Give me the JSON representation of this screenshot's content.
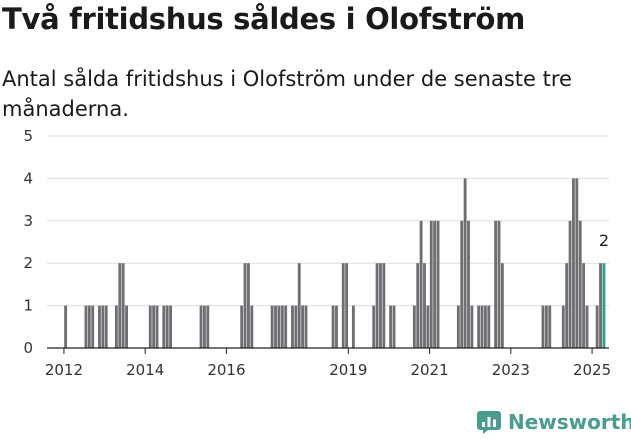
{
  "header": {
    "title": "Två fritidshus såldes i Olofström",
    "subtitle": "Antal sålda fritidshus i Olofström under de senaste tre månaderna."
  },
  "brand": {
    "name": "Newsworthy",
    "icon": "newsworthy-logo-icon",
    "color": "#4a9c8f"
  },
  "colors": {
    "bar": "#6e6e73",
    "highlight": "#2a9d8f",
    "grid": "#dddddd",
    "axis": "#222222"
  },
  "chart_data": {
    "type": "bar",
    "title": "Två fritidshus såldes i Olofström",
    "subtitle": "Antal sålda fritidshus i Olofström under de senaste tre månaderna.",
    "xlabel": "",
    "ylabel": "",
    "ylim": [
      0,
      5
    ],
    "yticks": [
      0,
      1,
      2,
      3,
      4,
      5
    ],
    "x_range": [
      "2011-08",
      "2025-05"
    ],
    "xticks": [
      "2012",
      "2014",
      "2016",
      "2019",
      "2021",
      "2023",
      "2025"
    ],
    "grid": true,
    "legend": "none",
    "callout": {
      "month": "2025-04",
      "label": "2"
    },
    "series": [
      {
        "values": [
          [
            "2012-01",
            1
          ],
          [
            "2012-07",
            1
          ],
          [
            "2012-08",
            1
          ],
          [
            "2012-09",
            1
          ],
          [
            "2012-11",
            1
          ],
          [
            "2012-12",
            1
          ],
          [
            "2013-01",
            1
          ],
          [
            "2013-04",
            1
          ],
          [
            "2013-05",
            2
          ],
          [
            "2013-06",
            2
          ],
          [
            "2013-07",
            1
          ],
          [
            "2014-02",
            1
          ],
          [
            "2014-03",
            1
          ],
          [
            "2014-04",
            1
          ],
          [
            "2014-06",
            1
          ],
          [
            "2014-07",
            1
          ],
          [
            "2014-08",
            1
          ],
          [
            "2015-05",
            1
          ],
          [
            "2015-06",
            1
          ],
          [
            "2015-07",
            1
          ],
          [
            "2016-05",
            1
          ],
          [
            "2016-06",
            2
          ],
          [
            "2016-07",
            2
          ],
          [
            "2016-08",
            1
          ],
          [
            "2017-02",
            1
          ],
          [
            "2017-03",
            1
          ],
          [
            "2017-04",
            1
          ],
          [
            "2017-05",
            1
          ],
          [
            "2017-06",
            1
          ],
          [
            "2017-08",
            1
          ],
          [
            "2017-09",
            1
          ],
          [
            "2017-10",
            2
          ],
          [
            "2017-11",
            1
          ],
          [
            "2017-12",
            1
          ],
          [
            "2018-08",
            1
          ],
          [
            "2018-09",
            1
          ],
          [
            "2018-11",
            2
          ],
          [
            "2018-12",
            2
          ],
          [
            "2019-02",
            1
          ],
          [
            "2019-08",
            1
          ],
          [
            "2019-09",
            2
          ],
          [
            "2019-10",
            2
          ],
          [
            "2019-11",
            2
          ],
          [
            "2020-01",
            1
          ],
          [
            "2020-02",
            1
          ],
          [
            "2020-08",
            1
          ],
          [
            "2020-09",
            2
          ],
          [
            "2020-10",
            3
          ],
          [
            "2020-11",
            2
          ],
          [
            "2020-12",
            1
          ],
          [
            "2021-01",
            3
          ],
          [
            "2021-02",
            3
          ],
          [
            "2021-03",
            3
          ],
          [
            "2021-09",
            1
          ],
          [
            "2021-10",
            3
          ],
          [
            "2021-11",
            4
          ],
          [
            "2021-12",
            3
          ],
          [
            "2022-01",
            1
          ],
          [
            "2022-03",
            1
          ],
          [
            "2022-04",
            1
          ],
          [
            "2022-05",
            1
          ],
          [
            "2022-06",
            1
          ],
          [
            "2022-08",
            3
          ],
          [
            "2022-09",
            3
          ],
          [
            "2022-10",
            2
          ],
          [
            "2023-10",
            1
          ],
          [
            "2023-11",
            1
          ],
          [
            "2023-12",
            1
          ],
          [
            "2024-04",
            1
          ],
          [
            "2024-05",
            2
          ],
          [
            "2024-06",
            3
          ],
          [
            "2024-07",
            4
          ],
          [
            "2024-08",
            4
          ],
          [
            "2024-09",
            3
          ],
          [
            "2024-10",
            2
          ],
          [
            "2024-11",
            1
          ],
          [
            "2025-02",
            1
          ],
          [
            "2025-03",
            2
          ],
          [
            "2025-04",
            2
          ]
        ]
      }
    ]
  }
}
